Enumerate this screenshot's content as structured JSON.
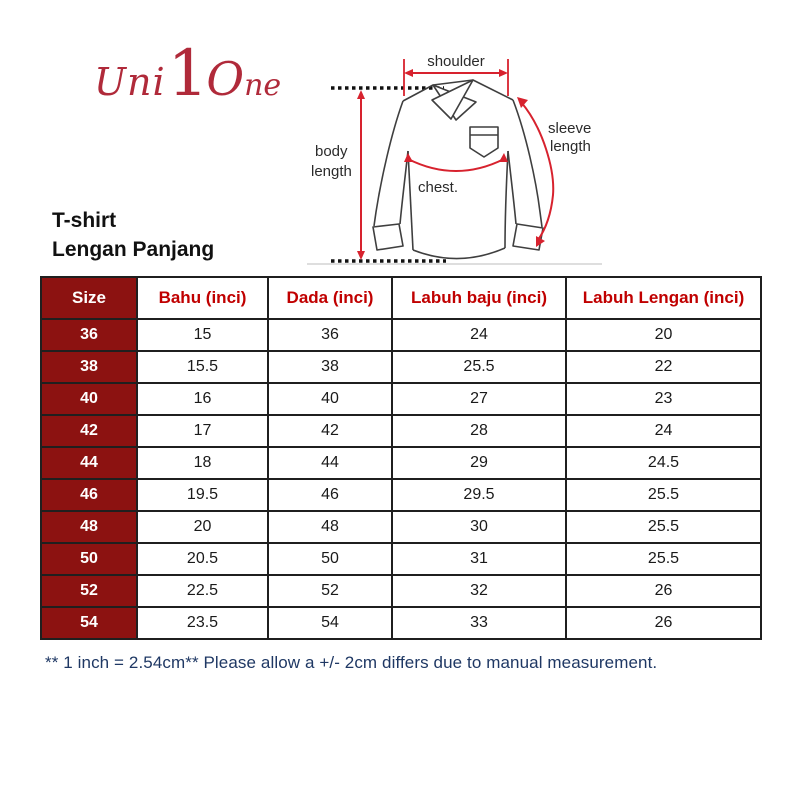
{
  "logo": {
    "part_uni": "Uni",
    "part_digit": "1",
    "part_o": "O",
    "part_ne": "ne",
    "color": "#b02a3a"
  },
  "diagram": {
    "labels": {
      "shoulder": "shoulder",
      "sleeve_line1": "sleeve",
      "sleeve_line2": "length",
      "body_line1": "body",
      "body_line2": "length",
      "chest": "chest."
    },
    "colors": {
      "annotation_red": "#d7222e",
      "shirt_outline": "#3f3f3f",
      "label_text": "#2b2b2b",
      "baseline_gray": "#c9c9c9"
    }
  },
  "title": {
    "line1": "T-shirt",
    "line2": "Lengan Panjang"
  },
  "size_table": {
    "headers": [
      "Size",
      "Bahu (inci)",
      "Dada (inci)",
      "Labuh baju (inci)",
      "Labuh Lengan (inci)"
    ],
    "rows": [
      [
        "36",
        "15",
        "36",
        "24",
        "20"
      ],
      [
        "38",
        "15.5",
        "38",
        "25.5",
        "22"
      ],
      [
        "40",
        "16",
        "40",
        "27",
        "23"
      ],
      [
        "42",
        "17",
        "42",
        "28",
        "24"
      ],
      [
        "44",
        "18",
        "44",
        "29",
        "24.5"
      ],
      [
        "46",
        "19.5",
        "46",
        "29.5",
        "25.5"
      ],
      [
        "48",
        "20",
        "48",
        "30",
        "25.5"
      ],
      [
        "50",
        "20.5",
        "50",
        "31",
        "25.5"
      ],
      [
        "52",
        "22.5",
        "52",
        "32",
        "26"
      ],
      [
        "54",
        "23.5",
        "54",
        "33",
        "26"
      ]
    ],
    "colors": {
      "accent_maroon": "#8c1211",
      "header_text_red": "#c00000",
      "size_text_white": "#ffffff",
      "cell_text": "#1a1a1a",
      "border": "#1f1f1f"
    }
  },
  "footnote": {
    "text": "** 1 inch = 2.54cm** Please allow a +/- 2cm differs due to manual measurement.",
    "color": "#1f3864"
  }
}
